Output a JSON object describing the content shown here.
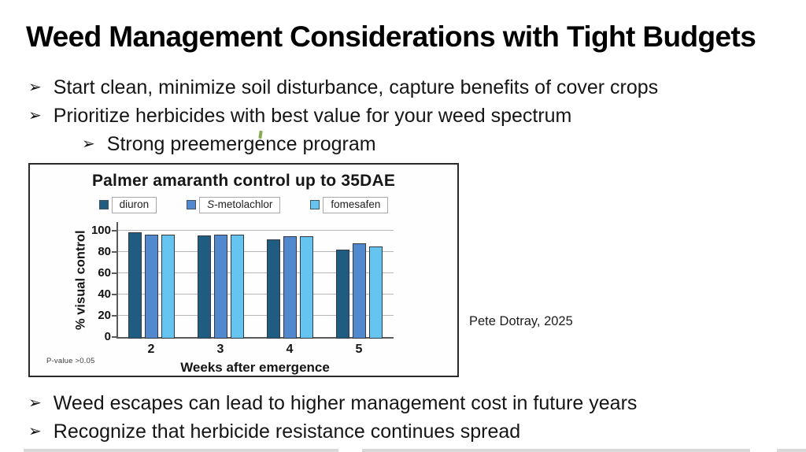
{
  "slide": {
    "title": "Weed Management Considerations with Tight Budgets",
    "bullet_glyph": "➢",
    "bullets_top": [
      {
        "text": "Start clean, minimize soil disturbance, capture benefits of cover crops"
      },
      {
        "text": "Prioritize herbicides with best value for your weed spectrum"
      },
      {
        "text": "Strong preemergence program"
      }
    ],
    "bullets_bottom": [
      {
        "text": "Weed escapes can lead to higher management cost in future years"
      },
      {
        "text": "Recognize that herbicide resistance continues spread"
      }
    ],
    "attribution": "Pete Dotray, 2025"
  },
  "chart_data": {
    "type": "bar",
    "title": "Palmer amaranth control up to 35DAE",
    "categories": [
      "2",
      "3",
      "4",
      "5"
    ],
    "series": [
      {
        "name": "diuron",
        "color": "#1e5c82",
        "values": [
          100,
          97,
          93,
          84
        ]
      },
      {
        "name": "S-metolachlor",
        "color": "#5289ce",
        "values": [
          98,
          98,
          96,
          90
        ],
        "italic_first_letter": true
      },
      {
        "name": "fomesafen",
        "color": "#66c5f0",
        "values": [
          98,
          98,
          96,
          87
        ]
      }
    ],
    "xlabel": "Weeks after emergence",
    "ylabel": "% visual control",
    "yticks": [
      0,
      20,
      40,
      60,
      80,
      100
    ],
    "ylim": [
      0,
      110
    ],
    "grid": true,
    "legend_position": "top",
    "note": "P-value >0.05"
  }
}
